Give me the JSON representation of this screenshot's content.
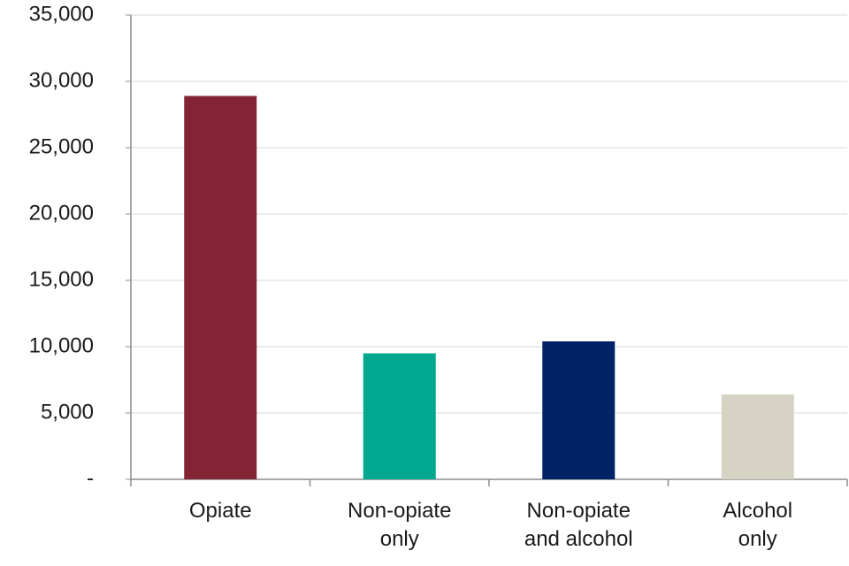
{
  "chart_data": {
    "type": "bar",
    "categories": [
      "Opiate",
      "Non-opiate only",
      "Non-opiate and alcohol",
      "Alcohol only"
    ],
    "values": [
      28900,
      9500,
      10400,
      6400
    ],
    "colors": [
      "#822433",
      "#00a88f",
      "#002266",
      "#d6d3c4"
    ],
    "ylim": [
      0,
      35000
    ],
    "yticks": [
      {
        "value": 0,
        "label": "-"
      },
      {
        "value": 5000,
        "label": "5,000"
      },
      {
        "value": 10000,
        "label": "10,000"
      },
      {
        "value": 15000,
        "label": "15,000"
      },
      {
        "value": 20000,
        "label": "20,000"
      },
      {
        "value": 25000,
        "label": "25,000"
      },
      {
        "value": 30000,
        "label": "30,000"
      },
      {
        "value": 35000,
        "label": "35,000"
      }
    ],
    "grid": true
  }
}
